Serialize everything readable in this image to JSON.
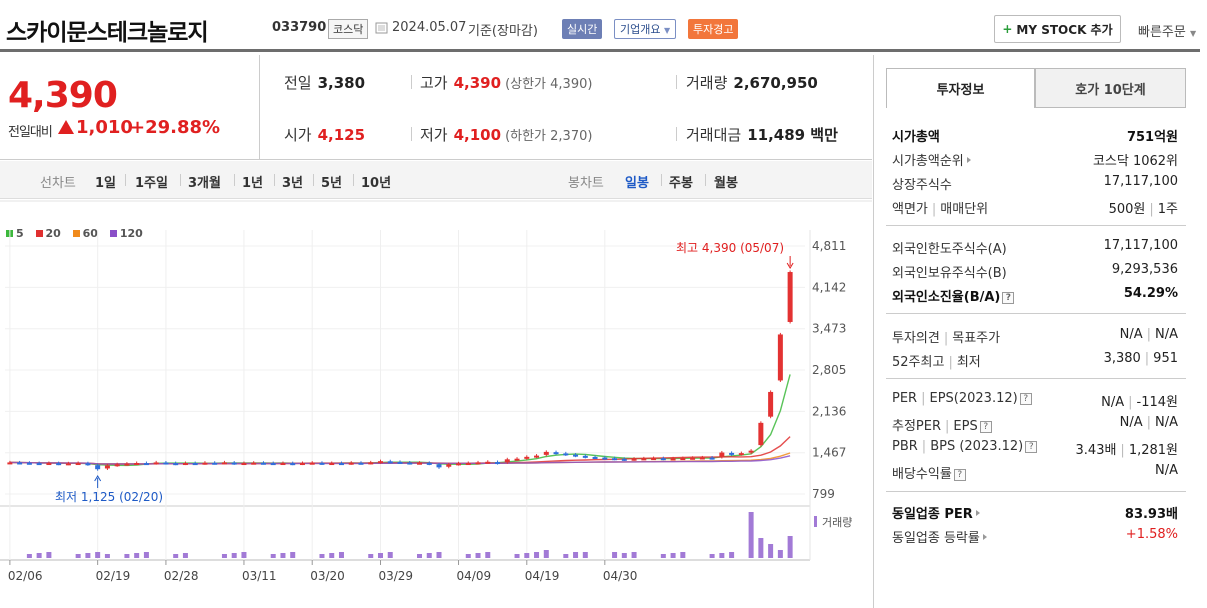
{
  "header": {
    "company": "스카이문스테크놀로지",
    "code": "033790",
    "market": "코스닥",
    "date": "2024.05.07",
    "basis": "기준(장마감)",
    "btn_realtime": "실시간",
    "btn_overview": "기업개요",
    "btn_warning": "투자경고",
    "mystock": "MY STOCK 추가",
    "quick_order": "빠른주문"
  },
  "quote": {
    "price": "4,390",
    "change_label": "전일대비",
    "change": "1,010",
    "change_rate": "+29.88%",
    "prev_label": "전일",
    "prev": "3,380",
    "high_label": "고가",
    "high": "4,390",
    "upper_limit": "(상한가 4,390)",
    "volume_label": "거래량",
    "volume": "2,670,950",
    "open_label": "시가",
    "open": "4,125",
    "low_label": "저가",
    "low": "4,100",
    "lower_limit": "(하한가 2,370)",
    "amount_label": "거래대금",
    "amount": "11,489 백만"
  },
  "toolbar": {
    "line_label": "선차트",
    "line_periods": [
      "1일",
      "1주일",
      "3개월",
      "1년",
      "3년",
      "5년",
      "10년"
    ],
    "candle_label": "봉차트",
    "candle_periods": [
      "일봉",
      "주봉",
      "월봉"
    ],
    "active_candle": "일봉"
  },
  "chart_data": {
    "type": "candlestick",
    "legend": [
      {
        "name": "5",
        "color": "#3cb83c"
      },
      {
        "name": "20",
        "color": "#e03030"
      },
      {
        "name": "60",
        "color": "#f08a1c"
      },
      {
        "name": "120",
        "color": "#8a4fc8"
      }
    ],
    "y_ticks": [
      4811,
      4142,
      3473,
      2805,
      2136,
      1467,
      799
    ],
    "ylim": [
      799,
      4811
    ],
    "x_ticks": [
      "02/06",
      "02/19",
      "02/28",
      "03/11",
      "03/20",
      "03/29",
      "04/09",
      "04/19",
      "04/30"
    ],
    "high_annotation": "최고 4,390 (05/07)",
    "low_annotation": "최저 1,125 (02/20)",
    "volume_label": "거래량",
    "closes": [
      1310,
      1305,
      1300,
      1295,
      1300,
      1290,
      1295,
      1300,
      1280,
      1200,
      1260,
      1280,
      1290,
      1300,
      1295,
      1310,
      1300,
      1290,
      1300,
      1295,
      1305,
      1300,
      1310,
      1295,
      1300,
      1305,
      1300,
      1295,
      1300,
      1290,
      1300,
      1305,
      1295,
      1300,
      1295,
      1305,
      1300,
      1310,
      1330,
      1320,
      1310,
      1300,
      1305,
      1290,
      1230,
      1280,
      1295,
      1300,
      1310,
      1320,
      1300,
      1360,
      1370,
      1400,
      1420,
      1480,
      1460,
      1440,
      1420,
      1400,
      1390,
      1380,
      1370,
      1360,
      1370,
      1375,
      1380,
      1370,
      1375,
      1380,
      1385,
      1390,
      1380,
      1470,
      1440,
      1460,
      1500,
      1950,
      2450,
      3380,
      4390
    ]
  },
  "panel": {
    "tab_invest": "투자정보",
    "tab_hoga": "호가 10단계",
    "market_cap_label": "시가총액",
    "market_cap": "751억원",
    "market_cap_rank_label": "시가총액순위",
    "market_cap_rank": "코스닥 1062위",
    "shares_label": "상장주식수",
    "shares": "17,117,100",
    "par_label": "액면가",
    "par_unit_label": "매매단위",
    "par": "500원",
    "unit": "1주",
    "foreign_limit_label": "외국인한도주식수(A)",
    "foreign_limit": "17,117,100",
    "foreign_hold_label": "외국인보유주식수(B)",
    "foreign_hold": "9,293,536",
    "foreign_ratio_label": "외국인소진율(B/A)",
    "foreign_ratio": "54.29%",
    "opinion_label": "투자의견",
    "target_label": "목표주가",
    "opinion": "N/A",
    "target": "N/A",
    "w52_high_label": "52주최고",
    "w52_low_label": "최저",
    "w52_high": "3,380",
    "w52_low": "951",
    "per_label": "PER",
    "eps_label": "EPS(2023.12)",
    "per": "N/A",
    "eps": "-114원",
    "est_per_label": "추정PER",
    "est_eps_label": "EPS",
    "est_per": "N/A",
    "est_eps": "N/A",
    "pbr_label": "PBR",
    "bps_label": "BPS (2023.12)",
    "pbr": "3.43배",
    "bps": "1,281원",
    "dividend_label": "배당수익률",
    "dividend": "N/A",
    "sector_per_label": "동일업종 PER",
    "sector_per": "83.93배",
    "sector_rate_label": "동일업종 등락률",
    "sector_rate": "+1.58%"
  }
}
